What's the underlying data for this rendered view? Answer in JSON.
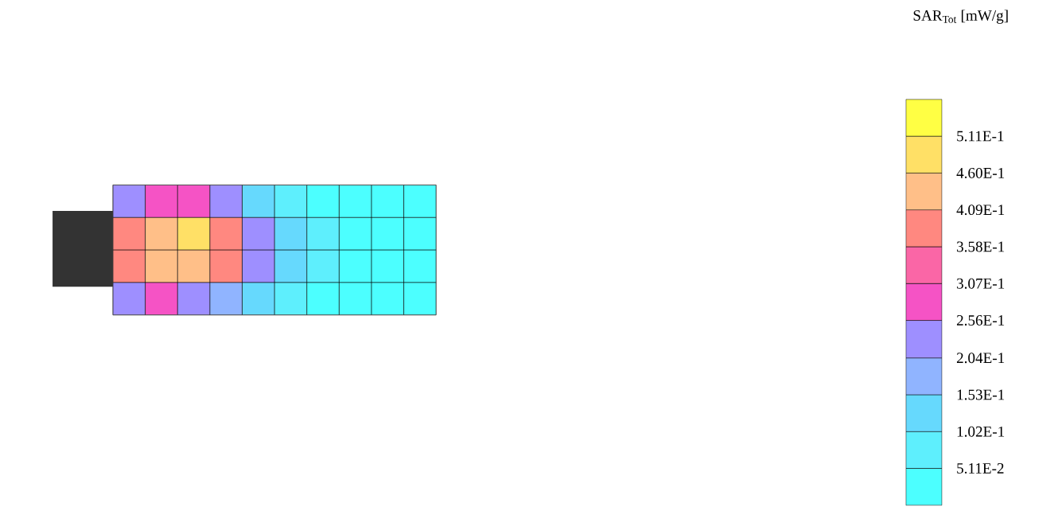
{
  "chart_data": {
    "type": "heatmap",
    "clabel": "SAR$_{Tot}$  [mW/g]",
    "categories": [
      null,
      null,
      null,
      null,
      null,
      null,
      null,
      null,
      null,
      null
    ],
    "y_categories": [
      null,
      null,
      null,
      null
    ],
    "cells": [
      [
        0.22,
        0.27,
        0.27,
        0.22,
        0.15,
        0.1,
        0.05,
        0.03,
        0.03,
        0.03
      ],
      [
        0.38,
        0.43,
        0.47,
        0.4,
        0.25,
        0.12,
        0.07,
        0.03,
        0.03,
        0.03
      ],
      [
        0.38,
        0.45,
        0.43,
        0.36,
        0.24,
        0.12,
        0.07,
        0.03,
        0.03,
        0.03
      ],
      [
        0.22,
        0.26,
        0.25,
        0.2,
        0.13,
        0.08,
        0.05,
        0.03,
        0.03,
        0.03
      ]
    ],
    "clim": [
      0,
      0.562
    ],
    "cticks": [
      {
        "value": 0.0511,
        "label": "5.11E-2"
      },
      {
        "value": 0.102,
        "label": "1.02E-1"
      },
      {
        "value": 0.153,
        "label": "1.53E-1"
      },
      {
        "value": 0.204,
        "label": "2.04E-1"
      },
      {
        "value": 0.256,
        "label": "2.56E-1"
      },
      {
        "value": 0.307,
        "label": "3.07E-1"
      },
      {
        "value": 0.358,
        "label": "3.58E-1"
      },
      {
        "value": 0.409,
        "label": "4.09E-1"
      },
      {
        "value": 0.46,
        "label": "4.60E-1"
      },
      {
        "value": 0.511,
        "label": "5.11E-1"
      }
    ]
  }
}
